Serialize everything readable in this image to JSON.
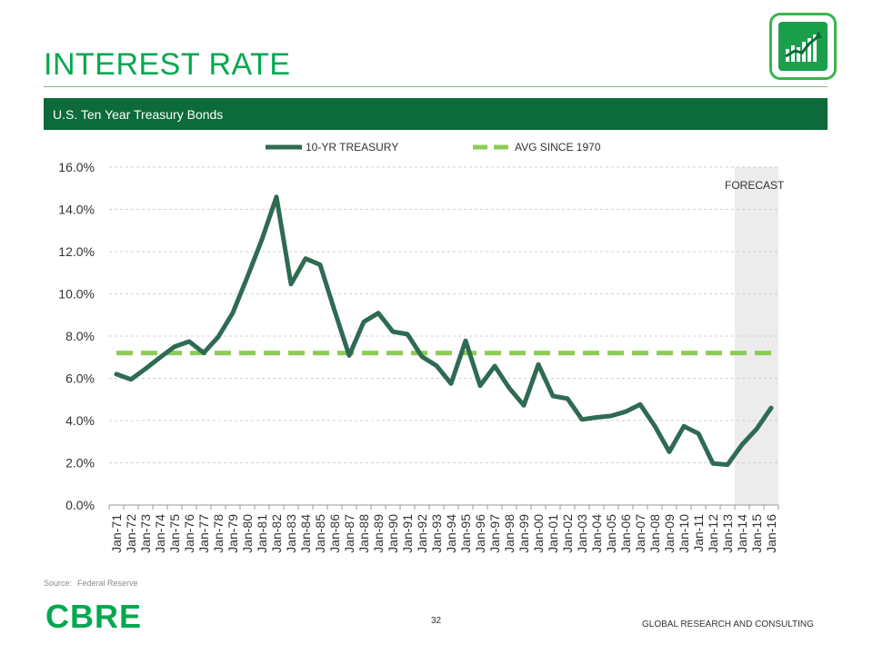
{
  "page": {
    "title": "INTEREST RATE",
    "subtitle": "U.S. Ten Year Treasury Bonds",
    "source_label": "Source:",
    "source_value": "Federal Reserve",
    "brand": "CBRE",
    "page_number": "32",
    "footer": "GLOBAL RESEARCH AND CONSULTING",
    "logo_icon": "growth-chart-icon",
    "colors": {
      "title": "#00a94f",
      "bar": "#0d6a3a",
      "series": "#2e6b52",
      "average": "#8ccc55",
      "forecast_shade": "#ececec"
    }
  },
  "chart_data": {
    "type": "line",
    "categories": [
      "Jan-71",
      "Jan-72",
      "Jan-73",
      "Jan-74",
      "Jan-75",
      "Jan-76",
      "Jan-77",
      "Jan-78",
      "Jan-79",
      "Jan-80",
      "Jan-81",
      "Jan-82",
      "Jan-83",
      "Jan-84",
      "Jan-85",
      "Jan-86",
      "Jan-87",
      "Jan-88",
      "Jan-89",
      "Jan-90",
      "Jan-91",
      "Jan-92",
      "Jan-93",
      "Jan-94",
      "Jan-95",
      "Jan-96",
      "Jan-97",
      "Jan-98",
      "Jan-99",
      "Jan-00",
      "Jan-01",
      "Jan-02",
      "Jan-03",
      "Jan-04",
      "Jan-05",
      "Jan-06",
      "Jan-07",
      "Jan-08",
      "Jan-09",
      "Jan-10",
      "Jan-11",
      "Jan-12",
      "Jan-13",
      "Jan-14",
      "Jan-15",
      "Jan-16"
    ],
    "series": [
      {
        "name": "10-YR TREASURY",
        "values": [
          6.2,
          5.95,
          6.45,
          6.99,
          7.5,
          7.74,
          7.21,
          7.96,
          9.1,
          10.8,
          12.57,
          14.59,
          10.46,
          11.67,
          11.38,
          9.19,
          7.08,
          8.67,
          9.09,
          8.21,
          8.09,
          7.03,
          6.6,
          5.75,
          7.78,
          5.65,
          6.58,
          5.54,
          4.72,
          6.66,
          5.16,
          5.04,
          4.05,
          4.15,
          4.22,
          4.42,
          4.76,
          3.74,
          2.52,
          3.73,
          3.39,
          1.97,
          1.91,
          2.86,
          3.6,
          4.6
        ]
      },
      {
        "name": "AVG SINCE 1970",
        "values": [
          7.2,
          7.2,
          7.2,
          7.2,
          7.2,
          7.2,
          7.2,
          7.2,
          7.2,
          7.2,
          7.2,
          7.2,
          7.2,
          7.2,
          7.2,
          7.2,
          7.2,
          7.2,
          7.2,
          7.2,
          7.2,
          7.2,
          7.2,
          7.2,
          7.2,
          7.2,
          7.2,
          7.2,
          7.2,
          7.2,
          7.2,
          7.2,
          7.2,
          7.2,
          7.2,
          7.2,
          7.2,
          7.2,
          7.2,
          7.2,
          7.2,
          7.2,
          7.2,
          7.2,
          7.2,
          7.2
        ]
      }
    ],
    "yticks": [
      "0.0%",
      "2.0%",
      "4.0%",
      "6.0%",
      "8.0%",
      "10.0%",
      "12.0%",
      "14.0%",
      "16.0%"
    ],
    "ylim": [
      0,
      16
    ],
    "forecast_label": "FORECAST",
    "forecast_start": "Jan-14",
    "legend_position": "top-center",
    "grid": "horizontal-dashed"
  }
}
